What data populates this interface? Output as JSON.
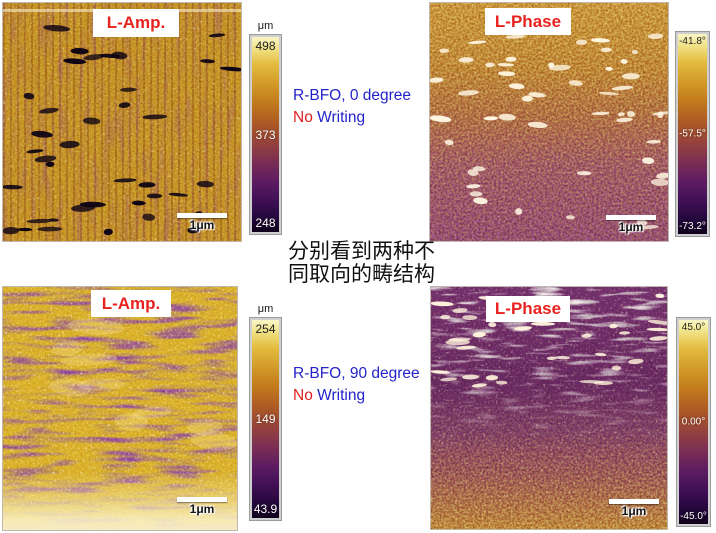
{
  "figure": {
    "notes_top": {
      "line1": "R-BFO, 0 degree",
      "no": "No",
      "writing": " Writing"
    },
    "notes_bottom": {
      "line1": "R-BFO, 90 degree",
      "no": "No",
      "writing": " Writing"
    },
    "caption_cn_line1": "分别看到两种不",
    "caption_cn_line2": "同取向的畴结构"
  },
  "panels": {
    "tl": {
      "label": "L-Amp.",
      "scalebar": "1μm",
      "colorbar": {
        "unit": "μm",
        "max": "498",
        "mid": "373",
        "min": "248"
      }
    },
    "tr": {
      "label": "L-Phase",
      "scalebar": "1μm",
      "colorbar": {
        "max": "-41.8°",
        "mid": "-57.5°",
        "min": "-73.2°"
      }
    },
    "bl": {
      "label": "L-Amp.",
      "scalebar": "1μm",
      "colorbar": {
        "unit": "μm",
        "max": "254",
        "mid": "149",
        "min": "43.9"
      }
    },
    "br": {
      "label": "L-Phase",
      "scalebar": "1μm",
      "colorbar": {
        "max": "45.0°",
        "mid": "0.00°",
        "min": "-45.0°"
      }
    }
  },
  "colors": {
    "label_red": "#e8231f",
    "text_blue": "#2323cc",
    "text_red": "#e02020",
    "colormap_top": "#faf6c8",
    "colormap_mid": "#ad5a24",
    "colormap_bottom": "#10021c"
  }
}
